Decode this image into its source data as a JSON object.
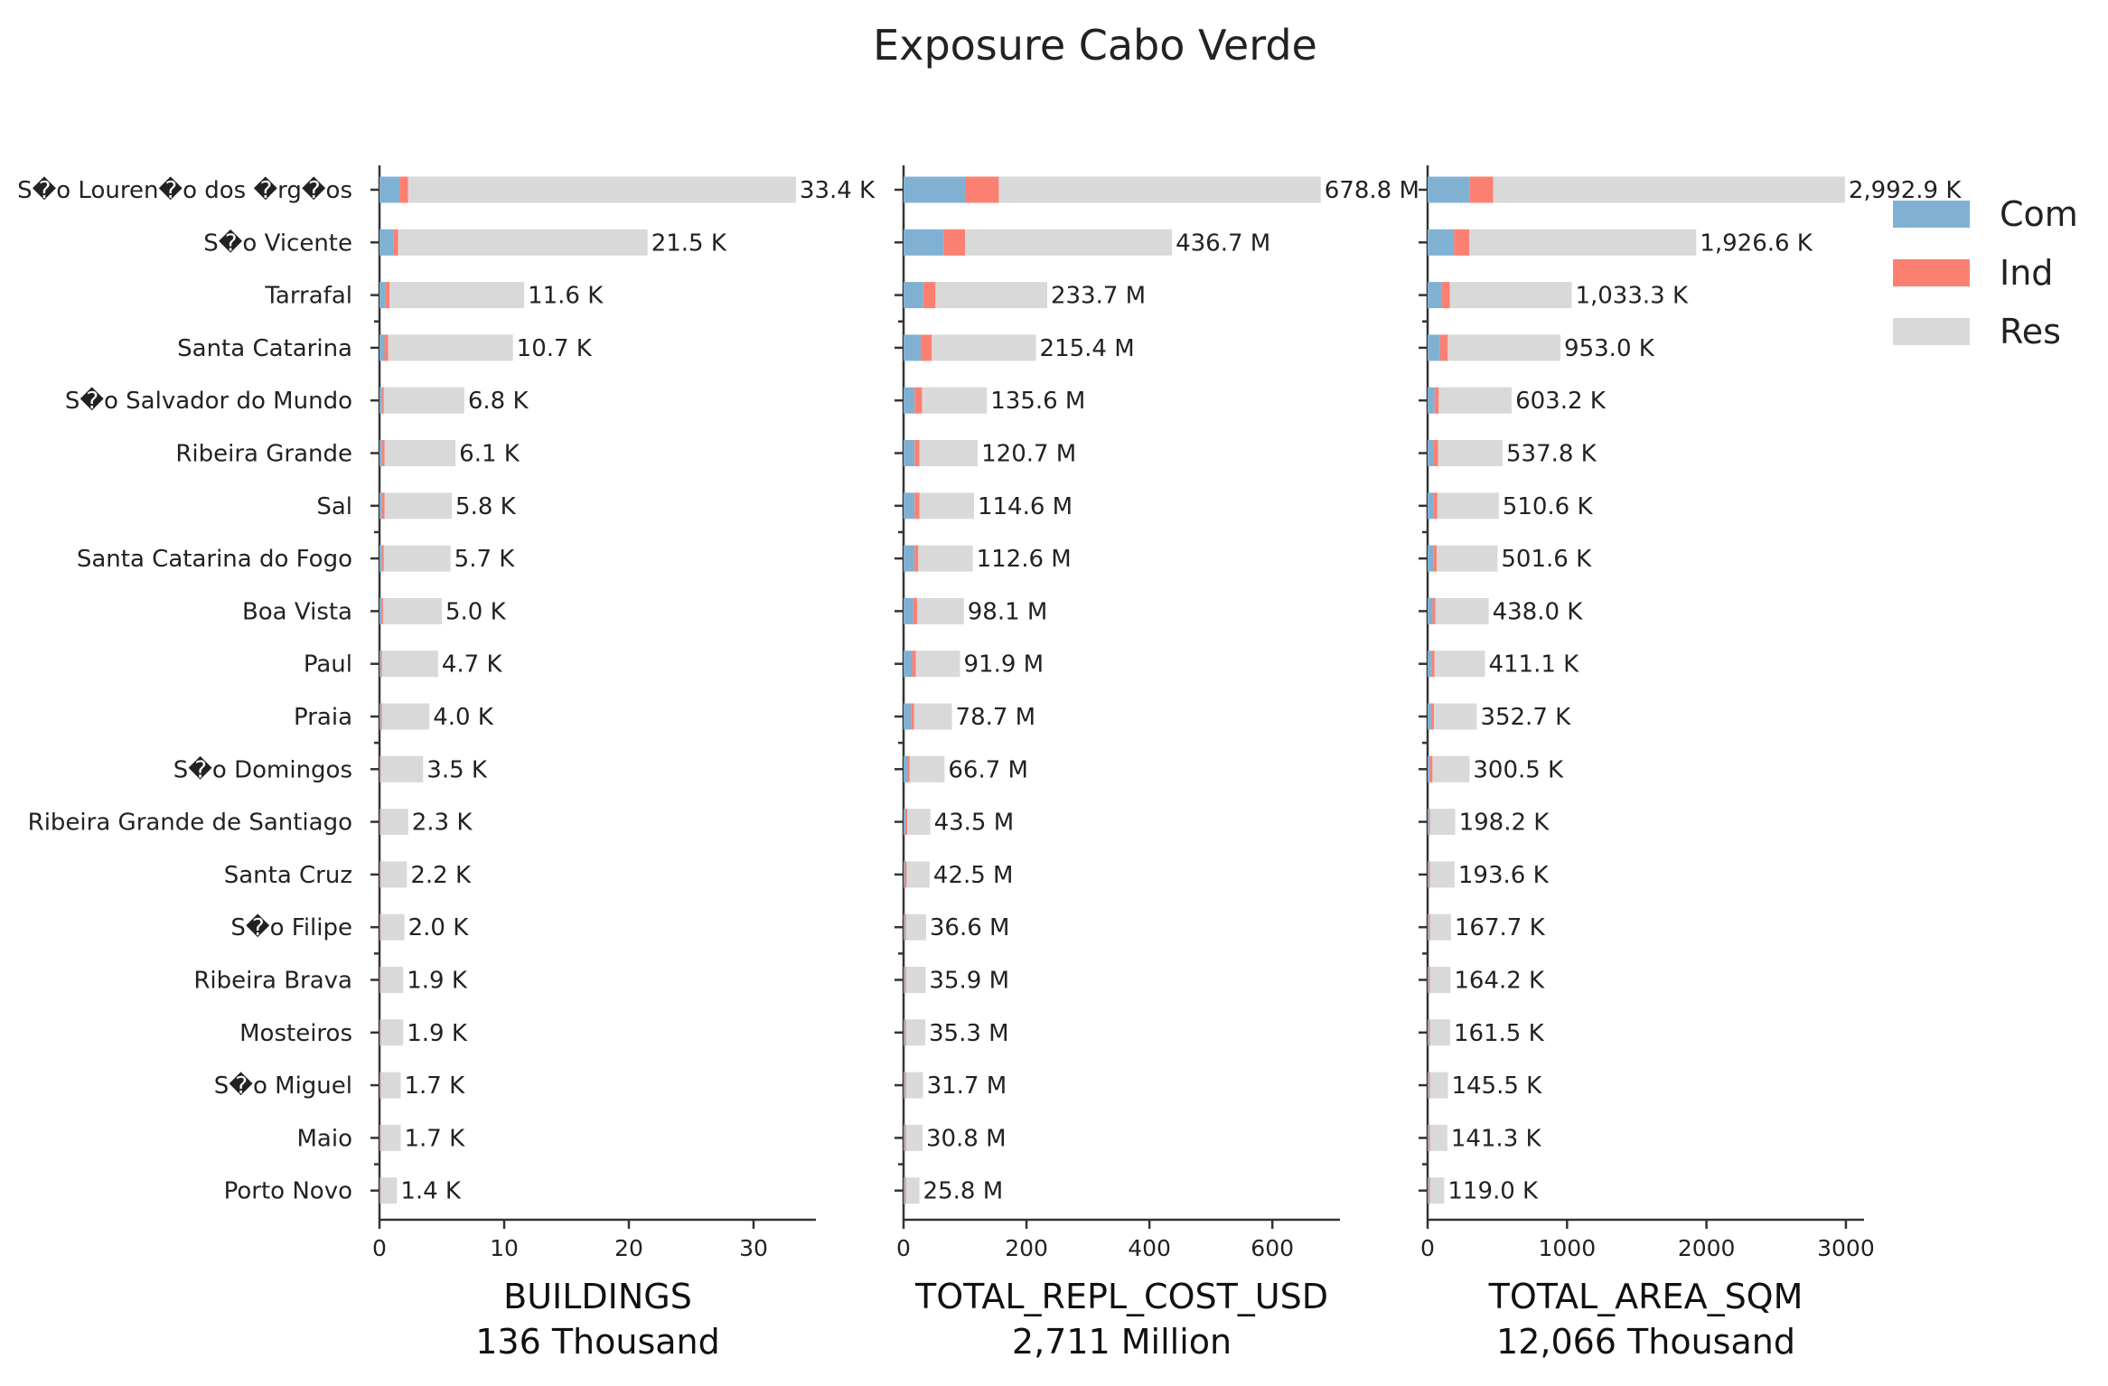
{
  "chart_data": {
    "type": "bar",
    "title": "Exposure Cabo Verde",
    "categories": [
      "S�o Louren�o dos �rg�os",
      "S�o Vicente",
      "Tarrafal",
      "Santa Catarina",
      "S�o Salvador do Mundo",
      "Ribeira Grande",
      "Sal",
      "Santa Catarina do Fogo",
      "Boa Vista",
      "Paul",
      "Praia",
      "S�o Domingos",
      "Ribeira Grande de Santiago",
      "Santa Cruz",
      "S�o Filipe",
      "Ribeira Brava",
      "Mosteiros",
      "S�o Miguel",
      "Maio",
      "Porto Novo"
    ],
    "legend": {
      "position": "top-right",
      "entries": [
        "Com",
        "Ind",
        "Res"
      ]
    },
    "colors": {
      "Com": "#80b1d3",
      "Ind": "#fb8072",
      "Res": "#d9d9d9"
    },
    "panels": [
      {
        "xlabel": "BUILDINGS",
        "subtitle": "136 Thousand",
        "xlim": [
          0,
          35
        ],
        "xticks": [
          0,
          10,
          20,
          30
        ],
        "series": [
          {
            "name": "Com",
            "values": [
              1.6,
              1.1,
              0.5,
              0.4,
              0.2,
              0.2,
              0.2,
              0.2,
              0.2,
              0.1,
              0.1,
              0.05,
              0.05,
              0.05,
              0.05,
              0.05,
              0.05,
              0.05,
              0.05,
              0.05
            ]
          },
          {
            "name": "Ind",
            "values": [
              0.7,
              0.4,
              0.3,
              0.3,
              0.15,
              0.2,
              0.2,
              0.15,
              0.1,
              0.1,
              0.1,
              0.05,
              0.05,
              0.05,
              0.05,
              0.05,
              0.05,
              0.05,
              0.05,
              0.05
            ]
          },
          {
            "name": "Res",
            "values": [
              31.1,
              20.0,
              10.8,
              10.0,
              6.45,
              5.7,
              5.4,
              5.35,
              4.7,
              4.5,
              3.8,
              3.4,
              2.2,
              2.1,
              1.9,
              1.8,
              1.8,
              1.6,
              1.6,
              1.3
            ]
          }
        ],
        "data_labels": [
          "33.4 K",
          "21.5 K",
          "11.6 K",
          "10.7 K",
          "6.8 K",
          "6.1 K",
          "5.8 K",
          "5.7 K",
          "5.0 K",
          "4.7 K",
          "4.0 K",
          "3.5 K",
          "2.3 K",
          "2.2 K",
          "2.0 K",
          "1.9 K",
          "1.9 K",
          "1.7 K",
          "1.7 K",
          "1.4 K"
        ]
      },
      {
        "xlabel": "TOTAL_REPL_COST_USD",
        "subtitle": "2,711 Million",
        "xlim": [
          0,
          710
        ],
        "xticks": [
          0,
          200,
          400,
          600
        ],
        "series": [
          {
            "name": "Com",
            "values": [
              100,
              65,
              32,
              28,
              18,
              18,
              18,
              18,
              16,
              14,
              12,
              6,
              3,
              2,
              2,
              2,
              2,
              2,
              2,
              2
            ]
          },
          {
            "name": "Ind",
            "values": [
              55,
              35,
              20,
              18,
              12,
              8,
              8,
              6,
              6,
              6,
              5,
              4,
              3,
              3,
              2,
              2,
              2,
              2,
              2,
              2
            ]
          },
          {
            "name": "Res",
            "values": [
              523.8,
              336.7,
              181.7,
              169.4,
              105.6,
              94.7,
              88.6,
              88.6,
              76.1,
              71.9,
              61.7,
              56.7,
              37.5,
              37.5,
              32.6,
              31.9,
              31.3,
              27.7,
              26.8,
              21.8
            ]
          }
        ],
        "data_labels": [
          "678.8 M",
          "436.7 M",
          "233.7 M",
          "215.4 M",
          "135.6 M",
          "120.7 M",
          "114.6 M",
          "112.6 M",
          "98.1 M",
          "91.9 M",
          "78.7 M",
          "66.7 M",
          "43.5 M",
          "42.5 M",
          "36.6 M",
          "35.9 M",
          "35.3 M",
          "31.7 M",
          "30.8 M",
          "25.8 M"
        ]
      },
      {
        "xlabel": "TOTAL_AREA_SQM",
        "subtitle": "12,066 Thousand",
        "xlim": [
          0,
          3130
        ],
        "xticks": [
          0,
          1000,
          2000,
          3000
        ],
        "series": [
          {
            "name": "Com",
            "values": [
              300,
              190,
              100,
              90,
              50,
              45,
              40,
              40,
              35,
              30,
              25,
              15,
              10,
              8,
              8,
              8,
              8,
              8,
              8,
              8
            ]
          },
          {
            "name": "Ind",
            "values": [
              170,
              110,
              60,
              55,
              30,
              30,
              30,
              25,
              20,
              20,
              20,
              20,
              8,
              8,
              8,
              8,
              8,
              8,
              8,
              8
            ]
          },
          {
            "name": "Res",
            "values": [
              2522.9,
              1626.6,
              873.3,
              808.0,
              523.2,
              462.8,
              440.6,
              436.6,
              383.0,
              361.1,
              307.7,
              265.5,
              180.2,
              177.6,
              151.7,
              148.2,
              145.5,
              129.5,
              125.3,
              103.0
            ]
          }
        ],
        "data_labels": [
          "2,992.9 K",
          "1,926.6 K",
          "1,033.3 K",
          "953.0 K",
          "603.2 K",
          "537.8 K",
          "510.6 K",
          "501.6 K",
          "438.0 K",
          "411.1 K",
          "352.7 K",
          "300.5 K",
          "198.2 K",
          "193.6 K",
          "167.7 K",
          "164.2 K",
          "161.5 K",
          "145.5 K",
          "141.3 K",
          "119.0 K"
        ]
      }
    ]
  }
}
